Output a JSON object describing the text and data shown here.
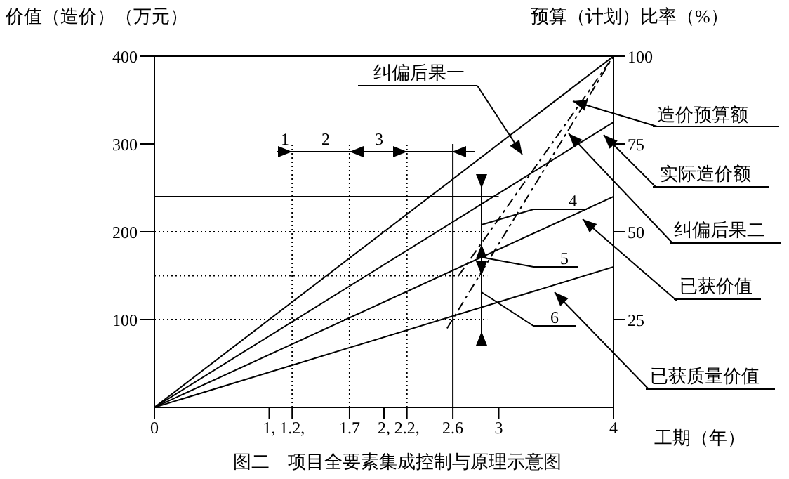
{
  "chart_data": {
    "type": "line",
    "title": "图二　项目全要素集成控制与原理示意图",
    "xlabel": "工期（年）",
    "ylabel": "价值（造价）（万元）",
    "y2label": "预算（计划）比率（%）",
    "xlim": [
      0,
      4
    ],
    "xticks": [
      0,
      {
        "value": 1,
        "label": "1,"
      },
      {
        "value": 1.2,
        "label": "1.2,"
      },
      1.7,
      {
        "value": 2,
        "label": "2,"
      },
      {
        "value": 2.2,
        "label": "2.2,"
      },
      2.6,
      3,
      4
    ],
    "ylim": [
      0,
      400
    ],
    "yticks": [
      100,
      200,
      300,
      400
    ],
    "y2lim": [
      0,
      100
    ],
    "y2ticks": [
      25,
      50,
      75,
      100
    ],
    "marker": "none",
    "line_style": "solid",
    "annotations": [
      "1",
      "2",
      "3",
      "4",
      {
        "text": "5",
        "x": 2.85,
        "y": 171
      },
      "6"
    ],
    "series": [
      {
        "name": "造价预算额",
        "color": "#000000",
        "x": [
          0,
          4
        ],
        "values": [
          0,
          400
        ]
      },
      {
        "name": "实际造价额",
        "color": "#000000",
        "x": [
          0,
          4
        ],
        "values": [
          0,
          325
        ]
      },
      {
        "name": "已获价值",
        "color": "#000000",
        "x": [
          0,
          4
        ],
        "values": [
          0,
          240
        ]
      },
      {
        "name": "已获质量价值",
        "color": "#000000",
        "x": [
          0,
          4
        ],
        "values": [
          0,
          160
        ]
      },
      {
        "name": "纠偏后果一",
        "color": "#000000",
        "line_style": "dashed",
        "x": [
          2.55,
          4
        ],
        "values": [
          90,
          400
        ]
      },
      {
        "name": "纠偏后果二",
        "color": "#000000",
        "line_style": "dashed",
        "x": [
          2.65,
          4
        ],
        "values": [
          150,
          400
        ]
      },
      {
        "color": "#000000",
        "x": [
          0,
          3
        ],
        "values": [
          240,
          240
        ]
      },
      {
        "color": "#000000",
        "line_style": "dotted",
        "x": [
          0,
          2.9
        ],
        "values": [
          200,
          200
        ]
      },
      {
        "color": "#000000",
        "line_style": "dotted",
        "x": [
          0,
          2.9
        ],
        "values": [
          150,
          150
        ]
      },
      {
        "color": "#000000",
        "line_style": "dotted",
        "x": [
          0,
          2.9
        ],
        "values": [
          100,
          100
        ]
      },
      {
        "color": "#000000",
        "line_style": "dotted",
        "x": [
          1.2,
          1.2
        ],
        "values": [
          0,
          300
        ]
      },
      {
        "color": "#000000",
        "line_style": "dotted",
        "x": [
          1.7,
          1.7
        ],
        "values": [
          0,
          300
        ]
      },
      {
        "color": "#000000",
        "line_style": "dotted",
        "x": [
          2.2,
          2.2
        ],
        "values": [
          0,
          300
        ]
      },
      {
        "color": "#000000",
        "x": [
          2.6,
          2.6
        ],
        "values": [
          0,
          300
        ]
      }
    ]
  }
}
